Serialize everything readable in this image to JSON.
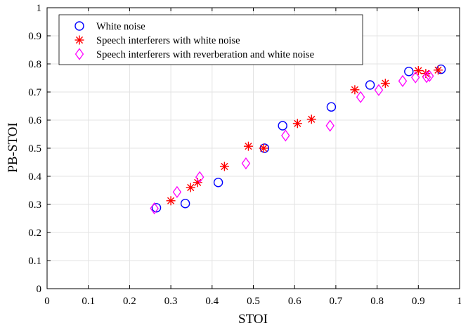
{
  "chart_data": {
    "type": "scatter",
    "title": "",
    "xlabel": "STOI",
    "ylabel": "PB-STOI",
    "xlim": [
      0,
      1
    ],
    "ylim": [
      0,
      1
    ],
    "xticks": [
      0,
      0.1,
      0.2,
      0.3,
      0.4,
      0.5,
      0.6,
      0.7,
      0.8,
      0.9,
      1
    ],
    "yticks": [
      0,
      0.1,
      0.2,
      0.3,
      0.4,
      0.5,
      0.6,
      0.7,
      0.8,
      0.9,
      1
    ],
    "xtick_labels": [
      "0",
      "0.1",
      "0.2",
      "0.3",
      "0.4",
      "0.5",
      "0.6",
      "0.7",
      "0.8",
      "0.9",
      "1"
    ],
    "ytick_labels": [
      "0",
      "0.1",
      "0.2",
      "0.3",
      "0.4",
      "0.5",
      "0.6",
      "0.7",
      "0.8",
      "0.9",
      "1"
    ],
    "grid": true,
    "legend_position": "top-left",
    "series": [
      {
        "name": "White noise",
        "marker": "circle",
        "color": "#0000ff",
        "points": [
          [
            0.265,
            0.288
          ],
          [
            0.335,
            0.303
          ],
          [
            0.415,
            0.378
          ],
          [
            0.527,
            0.5
          ],
          [
            0.571,
            0.58
          ],
          [
            0.689,
            0.647
          ],
          [
            0.783,
            0.725
          ],
          [
            0.877,
            0.773
          ],
          [
            0.955,
            0.781
          ]
        ]
      },
      {
        "name": "Speech interferers with white noise",
        "marker": "asterisk",
        "color": "#ff0000",
        "points": [
          [
            0.3,
            0.313
          ],
          [
            0.348,
            0.36
          ],
          [
            0.365,
            0.378
          ],
          [
            0.43,
            0.435
          ],
          [
            0.488,
            0.507
          ],
          [
            0.525,
            0.5
          ],
          [
            0.607,
            0.588
          ],
          [
            0.641,
            0.603
          ],
          [
            0.746,
            0.708
          ],
          [
            0.82,
            0.731
          ],
          [
            0.9,
            0.776
          ],
          [
            0.918,
            0.766
          ],
          [
            0.948,
            0.778
          ]
        ]
      },
      {
        "name": "Speech interferers with reverberation and white noise",
        "marker": "diamond",
        "color": "#ff00ff",
        "points": [
          [
            0.26,
            0.286
          ],
          [
            0.315,
            0.344
          ],
          [
            0.37,
            0.397
          ],
          [
            0.482,
            0.446
          ],
          [
            0.578,
            0.545
          ],
          [
            0.686,
            0.58
          ],
          [
            0.76,
            0.682
          ],
          [
            0.804,
            0.707
          ],
          [
            0.862,
            0.739
          ],
          [
            0.893,
            0.752
          ],
          [
            0.92,
            0.753
          ],
          [
            0.927,
            0.757
          ]
        ]
      }
    ]
  }
}
